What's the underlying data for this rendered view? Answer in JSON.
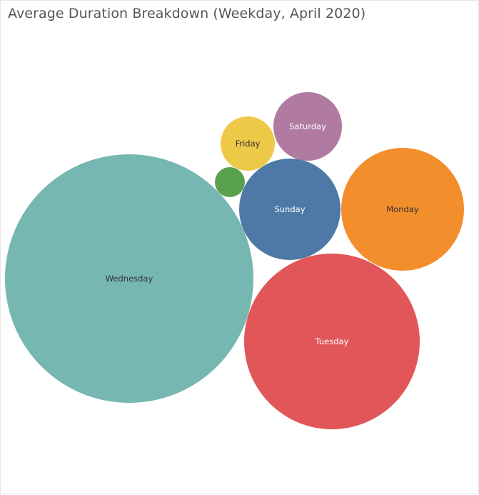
{
  "title": "Average Duration Breakdown (Weekday, April 2020)",
  "chart_data": {
    "type": "bubble",
    "title": "Average Duration Breakdown (Weekday, April 2020)",
    "series": [
      {
        "label": "Wednesday",
        "value": 100,
        "color": "#76b7b2",
        "text_color": "#333333"
      },
      {
        "label": "Tuesday",
        "value": 49,
        "color": "#e15759",
        "text_color": "#ffffff"
      },
      {
        "label": "Monday",
        "value": 24,
        "color": "#f28e2b",
        "text_color": "#333333"
      },
      {
        "label": "Sunday",
        "value": 16,
        "color": "#4e79a7",
        "text_color": "#ffffff"
      },
      {
        "label": "Saturday",
        "value": 7.5,
        "color": "#b07aa1",
        "text_color": "#ffffff"
      },
      {
        "label": "Friday",
        "value": 4.8,
        "color": "#edc948",
        "text_color": "#333333"
      },
      {
        "label": "",
        "value": 1.4,
        "color": "#59a14f",
        "text_color": "#ffffff"
      }
    ]
  }
}
